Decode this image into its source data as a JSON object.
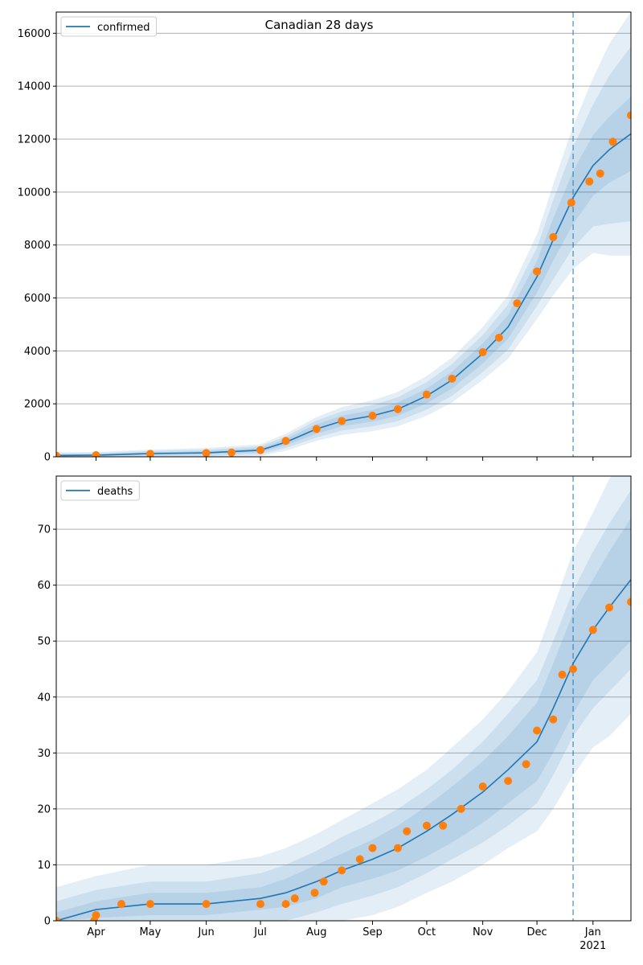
{
  "title": "Canadian 28 days",
  "colors": {
    "line": "#1f77b4",
    "points": "#ff7f0e",
    "band": "#1f77b4",
    "grid": "#b0b0b0",
    "vline": "#1f77b4"
  },
  "x_axis": {
    "start": "2020-03-10",
    "end": "2021-01-22",
    "month_ticks": [
      {
        "date": "2020-04-01",
        "label": "Apr"
      },
      {
        "date": "2020-05-01",
        "label": "May"
      },
      {
        "date": "2020-06-01",
        "label": "Jun"
      },
      {
        "date": "2020-07-01",
        "label": "Jul"
      },
      {
        "date": "2020-08-01",
        "label": "Aug"
      },
      {
        "date": "2020-09-01",
        "label": "Sep"
      },
      {
        "date": "2020-10-01",
        "label": "Oct"
      },
      {
        "date": "2020-11-01",
        "label": "Nov"
      },
      {
        "date": "2020-12-01",
        "label": "Dec"
      },
      {
        "date": "2021-01-01",
        "label": "Jan"
      }
    ],
    "year_label": "2021",
    "forecast_start": "2020-12-21"
  },
  "chart_data": [
    {
      "type": "line",
      "legend": [
        "confirmed"
      ],
      "legend_position": "top-left",
      "grid": "y",
      "ylim": [
        0,
        16800
      ],
      "yticks": [
        0,
        2000,
        4000,
        6000,
        8000,
        10000,
        12000,
        14000,
        16000
      ],
      "ytick_labels": [
        "0",
        "2000",
        "4000",
        "6000",
        "8000",
        "10000",
        "12000",
        "14000",
        "16000"
      ],
      "series": [
        {
          "name": "confirmed",
          "kind": "model",
          "x": [
            "2020-03-10",
            "2020-04-01",
            "2020-05-01",
            "2020-06-01",
            "2020-07-01",
            "2020-07-15",
            "2020-08-01",
            "2020-08-15",
            "2020-09-01",
            "2020-09-15",
            "2020-10-01",
            "2020-10-15",
            "2020-11-01",
            "2020-11-15",
            "2020-12-01",
            "2020-12-10",
            "2020-12-21",
            "2021-01-01",
            "2021-01-10",
            "2021-01-22"
          ],
          "y": [
            50,
            60,
            120,
            150,
            250,
            550,
            1050,
            1350,
            1550,
            1800,
            2300,
            2900,
            3900,
            4900,
            6800,
            8200,
            9800,
            11000,
            11600,
            12200
          ],
          "band_half_widths": [
            [
              40,
              40,
              50,
              60,
              80,
              120,
              180,
              200,
              220,
              250,
              280,
              320,
              380,
              450,
              600,
              800,
              1000,
              1150,
              1250,
              1400
            ],
            [
              80,
              80,
              100,
              120,
              150,
              220,
              320,
              360,
              400,
              450,
              520,
              600,
              700,
              850,
              1100,
              1500,
              1900,
              2300,
              2800,
              3300
            ],
            [
              120,
              120,
              150,
              180,
              220,
              320,
              450,
              520,
              580,
              650,
              750,
              850,
              1000,
              1200,
              1600,
              2100,
              2700,
              3300,
              4000,
              4600
            ]
          ]
        },
        {
          "name": "",
          "kind": "observed",
          "x": [
            "2020-03-10",
            "2020-04-01",
            "2020-05-01",
            "2020-06-01",
            "2020-06-15",
            "2020-07-01",
            "2020-07-15",
            "2020-08-01",
            "2020-08-15",
            "2020-09-01",
            "2020-09-15",
            "2020-10-01",
            "2020-10-15",
            "2020-11-01",
            "2020-11-10",
            "2020-11-20",
            "2020-12-01",
            "2020-12-10",
            "2020-12-20",
            "2020-12-30",
            "2021-01-05",
            "2021-01-12",
            "2021-01-22"
          ],
          "y": [
            40,
            60,
            110,
            140,
            160,
            250,
            600,
            1050,
            1350,
            1550,
            1800,
            2350,
            2950,
            3950,
            4500,
            5800,
            7000,
            8300,
            9600,
            10400,
            10700,
            11900,
            12900
          ]
        }
      ]
    },
    {
      "type": "line",
      "legend": [
        "deaths"
      ],
      "legend_position": "top-left",
      "grid": "y",
      "ylim": [
        0,
        79.5
      ],
      "yticks": [
        0,
        10,
        20,
        30,
        40,
        50,
        60,
        70
      ],
      "ytick_labels": [
        "0",
        "10",
        "20",
        "30",
        "40",
        "50",
        "60",
        "70"
      ],
      "series": [
        {
          "name": "deaths",
          "kind": "model",
          "x": [
            "2020-03-10",
            "2020-04-01",
            "2020-05-01",
            "2020-06-01",
            "2020-07-01",
            "2020-07-15",
            "2020-08-01",
            "2020-08-15",
            "2020-09-01",
            "2020-09-15",
            "2020-10-01",
            "2020-10-15",
            "2020-11-01",
            "2020-11-15",
            "2020-12-01",
            "2020-12-10",
            "2020-12-21",
            "2021-01-01",
            "2021-01-10",
            "2021-01-22"
          ],
          "y": [
            0,
            2,
            3,
            3,
            4,
            5,
            7,
            9,
            11,
            13,
            16,
            19,
            23,
            27,
            32,
            38,
            46,
            52,
            56,
            61
          ],
          "band_half_widths": [
            [
              1.5,
              1.5,
              2,
              2,
              2,
              2.5,
              3,
              3,
              3.5,
              4,
              4.5,
              5,
              5.5,
              6,
              7,
              8,
              9,
              9,
              10,
              11
            ],
            [
              3.5,
              3.5,
              4,
              4,
              4.5,
              5,
              5.5,
              6,
              6.5,
              7,
              7.5,
              8,
              9,
              10,
              11,
              12,
              13,
              14,
              15,
              16
            ],
            [
              6,
              6,
              7,
              7,
              7.5,
              8,
              8.5,
              9,
              10,
              10.5,
              11,
              12,
              13,
              14,
              16,
              18,
              20,
              21,
              23,
              24
            ]
          ]
        },
        {
          "name": "",
          "kind": "observed",
          "x": [
            "2020-03-10",
            "2020-03-31",
            "2020-04-01",
            "2020-04-15",
            "2020-05-01",
            "2020-06-01",
            "2020-07-01",
            "2020-07-15",
            "2020-07-20",
            "2020-07-31",
            "2020-08-05",
            "2020-08-15",
            "2020-08-25",
            "2020-09-01",
            "2020-09-15",
            "2020-09-20",
            "2020-10-01",
            "2020-10-10",
            "2020-10-20",
            "2020-11-01",
            "2020-11-15",
            "2020-11-25",
            "2020-12-01",
            "2020-12-10",
            "2020-12-15",
            "2020-12-21",
            "2021-01-01",
            "2021-01-10",
            "2021-01-22"
          ],
          "y": [
            0,
            0,
            1,
            3,
            3,
            3,
            3,
            3,
            4,
            5,
            7,
            9,
            11,
            13,
            13,
            16,
            17,
            17,
            20,
            24,
            25,
            28,
            34,
            36,
            44,
            45,
            52,
            56,
            57
          ]
        }
      ]
    }
  ]
}
